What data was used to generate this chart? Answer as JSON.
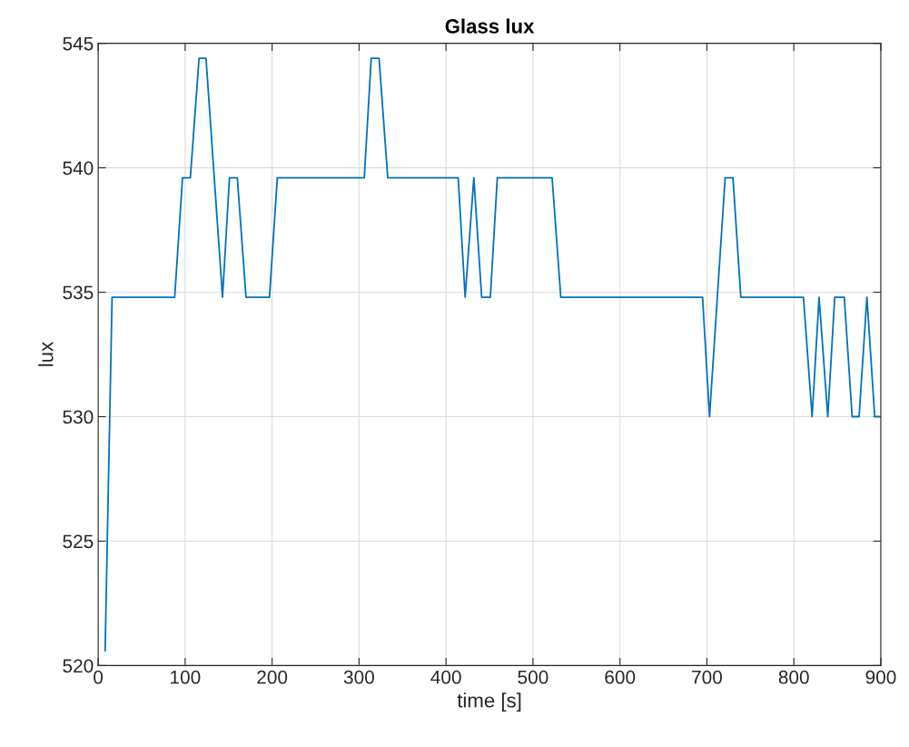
{
  "chart_data": {
    "type": "line",
    "title": "Glass lux",
    "xlabel": "time [s]",
    "ylabel": "lux",
    "series": [
      {
        "color": "#0072bd",
        "x": [
          8,
          16,
          88,
          97,
          106,
          116,
          124,
          143,
          151,
          160,
          170,
          197,
          206,
          306,
          314,
          323,
          333,
          414,
          422,
          432,
          441,
          451,
          459,
          522,
          532,
          695,
          703,
          721,
          730,
          739,
          811,
          821,
          829,
          839,
          847,
          858,
          867,
          875,
          884,
          893,
          900
        ],
        "values": [
          520.6,
          534.8,
          534.8,
          539.6,
          539.6,
          544.4,
          544.4,
          534.8,
          539.6,
          539.6,
          534.8,
          534.8,
          539.6,
          539.6,
          544.4,
          544.4,
          539.6,
          539.6,
          534.8,
          539.6,
          534.8,
          534.8,
          539.6,
          539.6,
          534.8,
          534.8,
          530.0,
          539.6,
          539.6,
          534.8,
          534.8,
          530.0,
          534.8,
          530.0,
          534.8,
          534.8,
          530.0,
          530.0,
          534.8,
          530.0,
          530.0
        ]
      }
    ],
    "xlim": [
      0,
      900
    ],
    "xticks": [
      0,
      100,
      200,
      300,
      400,
      500,
      600,
      700,
      800,
      900
    ],
    "ylim": [
      520,
      545
    ],
    "yticks": [
      520,
      525,
      530,
      535,
      540,
      545
    ],
    "grid": true
  }
}
